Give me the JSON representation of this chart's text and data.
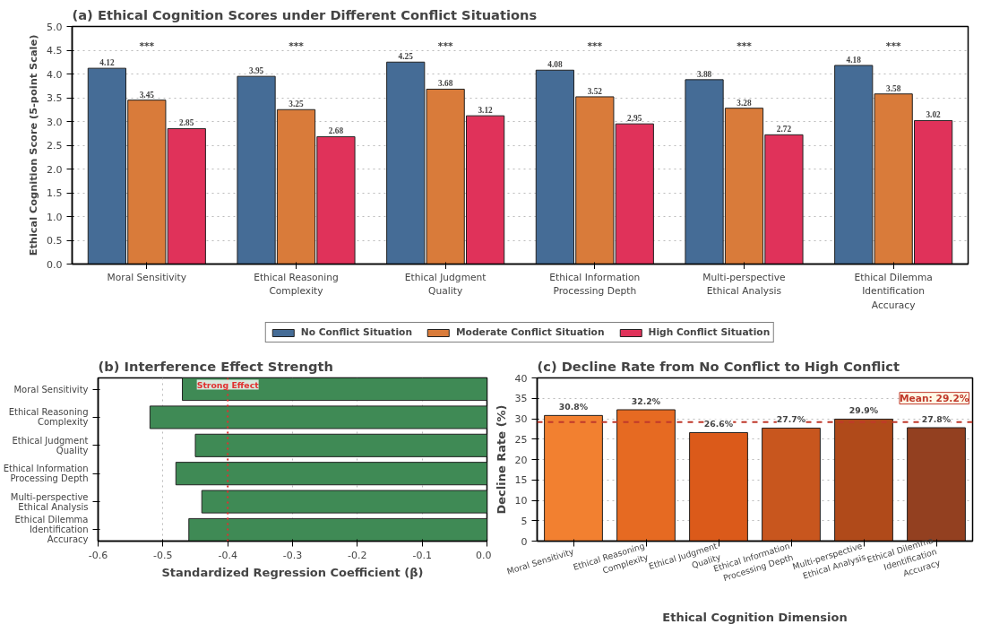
{
  "chart_data": [
    {
      "type": "bar",
      "title": "(a) Ethical Cognition Scores under Different Conflict Situations",
      "ylabel": "Ethical Cognition Score (5-point Scale)",
      "categories": [
        "Moral Sensitivity",
        "Ethical Reasoning Complexity",
        "Ethical Judgment Quality",
        "Ethical Information Processing Depth",
        "Multi-perspective Ethical Analysis",
        "Ethical Dilemma Identification Accuracy"
      ],
      "series": [
        {
          "name": "No Conflict Situation",
          "color": "#456c96",
          "values": [
            4.12,
            3.95,
            4.25,
            4.08,
            3.88,
            4.18
          ]
        },
        {
          "name": "Moderate Conflict Situation",
          "color": "#d97b3a",
          "values": [
            3.45,
            3.25,
            3.68,
            3.52,
            3.28,
            3.58
          ]
        },
        {
          "name": "High Conflict Situation",
          "color": "#e0325a",
          "values": [
            2.85,
            2.68,
            3.12,
            2.95,
            2.72,
            3.02
          ]
        }
      ],
      "ylim": [
        0,
        5
      ],
      "yticks": [
        {
          "value": 0,
          "label": "0.0"
        },
        {
          "value": 0.5,
          "label": "0.5"
        },
        {
          "value": 1,
          "label": "1.0"
        },
        {
          "value": 1.5,
          "label": "1.5"
        },
        {
          "value": 2,
          "label": "2.0"
        },
        {
          "value": 2.5,
          "label": "2.5"
        },
        {
          "value": 3,
          "label": "3.0"
        },
        {
          "value": 3.5,
          "label": "3.5"
        },
        {
          "value": 4,
          "label": "4.0"
        },
        {
          "value": 4.5,
          "label": "4.5"
        },
        {
          "value": 5,
          "label": "5.0"
        }
      ],
      "grid": "y",
      "legend": "bottom",
      "data_labels": true,
      "annotations": [
        "***",
        "***",
        "***",
        "***",
        "***",
        "***"
      ]
    },
    {
      "type": "bar",
      "orientation": "horizontal",
      "title": "(b) Interference Effect Strength",
      "xlabel": "Standardized Regression Coefficient (β)",
      "categories": [
        "Moral Sensitivity",
        "Ethical Reasoning Complexity",
        "Ethical Judgment Quality",
        "Ethical Information Processing Depth",
        "Multi-perspective Ethical Analysis",
        "Ethical Dilemma Identification Accuracy"
      ],
      "values": [
        -0.47,
        -0.52,
        -0.45,
        -0.48,
        -0.44,
        -0.46
      ],
      "color": "#3f8a55",
      "xlim": [
        -0.6,
        0
      ],
      "xticks": [
        -0.6,
        -0.5,
        -0.4,
        -0.3,
        -0.2,
        -0.1,
        {
          "value": 0,
          "label": "0.0"
        }
      ],
      "grid": "x",
      "ref_lines": [
        {
          "axis": "x",
          "value": -0.4,
          "label": "Strong Effect",
          "color": "#e03030",
          "line_style": "dotted"
        }
      ]
    },
    {
      "type": "bar",
      "title": "(c) Decline Rate from No Conflict to High Conflict",
      "xlabel": "Ethical Cognition Dimension",
      "ylabel": "Decline Rate (%)",
      "categories": [
        "Moral Sensitivity",
        "Ethical Reasoning Complexity",
        "Ethical Judgment Quality",
        "Ethical Information Processing Depth",
        "Multi-perspective Ethical Analysis",
        "Ethical Dilemma Identification Accuracy"
      ],
      "values": [
        30.8,
        32.2,
        26.6,
        27.7,
        29.9,
        27.8
      ],
      "colors": [
        "#f28030",
        "#e66a22",
        "#db5a1a",
        "#c8561e",
        "#b04a1a",
        "#934020"
      ],
      "value_labels": [
        "30.8%",
        "32.2%",
        "26.6%",
        "27.7%",
        "29.9%",
        "27.8%"
      ],
      "ylim": [
        0,
        40
      ],
      "yticks": [
        0,
        5,
        10,
        15,
        20,
        25,
        30,
        35,
        40
      ],
      "grid": "y",
      "ref_lines": [
        {
          "axis": "y",
          "value": 29.2,
          "label": "Mean: 29.2%",
          "color": "#c0392b",
          "line_style": "dashed"
        }
      ]
    }
  ]
}
